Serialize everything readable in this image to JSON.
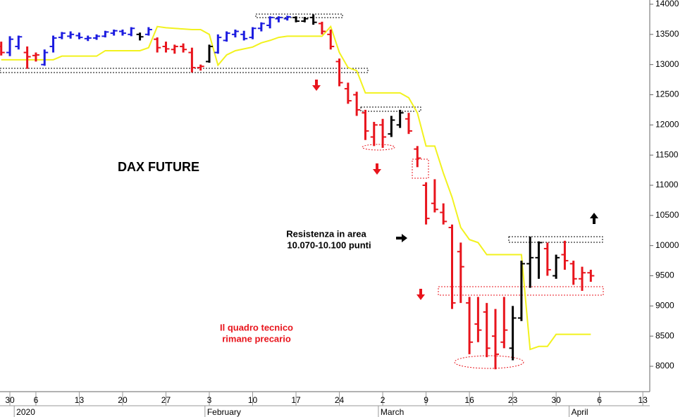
{
  "chart_data": {
    "type": "ohlc",
    "title": "DAX FUTURE",
    "annotations": [
      {
        "lines": [
          "Resistenza in area",
          "10.070-10.100 punti"
        ],
        "color": "#000000"
      },
      {
        "lines": [
          "Il quadro tecnico",
          "rimane precario"
        ],
        "color": "#e8141c"
      }
    ],
    "x": [
      -1,
      0,
      1,
      2,
      3,
      4,
      5,
      6,
      7,
      8,
      9,
      10,
      11,
      12,
      13,
      14,
      15,
      16,
      17,
      18,
      19,
      20,
      21,
      22,
      23,
      24,
      25,
      26,
      27,
      28,
      29,
      30,
      31,
      32,
      33,
      34,
      35,
      36,
      37,
      38,
      39,
      40,
      41,
      42,
      43,
      44,
      45,
      46,
      47,
      48,
      49,
      50,
      51,
      52,
      53,
      54,
      55,
      56,
      57,
      58,
      59,
      60,
      61,
      62,
      63,
      64,
      65,
      66,
      67
    ],
    "open": [
      13300,
      13200,
      13300,
      13200,
      13150,
      13000,
      13300,
      13450,
      13470,
      13480,
      13430,
      13440,
      13470,
      13520,
      13550,
      13500,
      13500,
      13500,
      13420,
      13300,
      13250,
      13300,
      13200,
      12950,
      13050,
      13200,
      13400,
      13500,
      13500,
      13450,
      13600,
      13650,
      13760,
      13760,
      13780,
      13720,
      13780,
      13680,
      13500,
      13050,
      12600,
      12500,
      12200,
      11800,
      12000,
      11850,
      12000,
      12100,
      11600,
      11000,
      10700,
      10550,
      10300,
      9900,
      9050,
      8700,
      8900,
      8500,
      8400,
      8300,
      8800,
      9700,
      9800,
      9950,
      9500,
      9850,
      9700,
      9450,
      9550
    ],
    "high": [
      13380,
      13470,
      13480,
      13300,
      13200,
      13250,
      13480,
      13540,
      13550,
      13530,
      13480,
      13500,
      13560,
      13580,
      13580,
      13620,
      13530,
      13620,
      13450,
      13380,
      13330,
      13350,
      13280,
      13000,
      13330,
      13500,
      13550,
      13580,
      13560,
      13620,
      13700,
      13800,
      13800,
      13810,
      13800,
      13790,
      13830,
      13710,
      13580,
      13100,
      12700,
      12550,
      12250,
      12050,
      12100,
      12150,
      12250,
      12200,
      11650,
      11050,
      11100,
      10700,
      10350,
      10050,
      9150,
      9150,
      9050,
      8950,
      9150,
      9000,
      9750,
      10150,
      10070,
      10050,
      9850,
      10080,
      9750,
      9650,
      9600
    ],
    "low": [
      13150,
      13140,
      13250,
      12930,
      13050,
      12980,
      13200,
      13420,
      13430,
      13420,
      13390,
      13410,
      13450,
      13480,
      13480,
      13470,
      13400,
      13480,
      13200,
      13200,
      13180,
      13200,
      12870,
      12900,
      13030,
      13180,
      13380,
      13450,
      13400,
      13420,
      13550,
      13600,
      13700,
      13730,
      13700,
      13700,
      13660,
      13500,
      13250,
      12640,
      12350,
      12150,
      11750,
      11650,
      11620,
      11800,
      11950,
      11850,
      11300,
      10350,
      10550,
      10350,
      8950,
      9050,
      8200,
      8400,
      8150,
      7950,
      8300,
      8100,
      8750,
      9300,
      9450,
      9500,
      9450,
      9600,
      9350,
      9250,
      9400
    ],
    "close": [
      13200,
      13420,
      13460,
      13130,
      13160,
      13200,
      13440,
      13520,
      13500,
      13450,
      13440,
      13470,
      13540,
      13560,
      13520,
      13600,
      13460,
      13580,
      13280,
      13260,
      13300,
      13250,
      12950,
      12970,
      13300,
      13450,
      13520,
      13550,
      13430,
      13600,
      13680,
      13780,
      13780,
      13790,
      13720,
      13760,
      13700,
      13550,
      13300,
      12700,
      12400,
      12250,
      11900,
      12000,
      11800,
      12080,
      12200,
      11900,
      11450,
      10450,
      10600,
      10400,
      9050,
      9650,
      8400,
      8600,
      8300,
      8200,
      8600,
      8800,
      9700,
      9800,
      10050,
      9600,
      9800,
      9750,
      9450,
      9550,
      9500
    ],
    "colors": [
      "#e8141c",
      "#1c1ce0",
      "#1c1ce0",
      "#e8141c",
      "#e8141c",
      "#1c1ce0",
      "#1c1ce0",
      "#1c1ce0",
      "#1c1ce0",
      "#1c1ce0",
      "#1c1ce0",
      "#1c1ce0",
      "#1c1ce0",
      "#1c1ce0",
      "#1c1ce0",
      "#1c1ce0",
      "#000000",
      "#1c1ce0",
      "#e8141c",
      "#e8141c",
      "#e8141c",
      "#e8141c",
      "#e8141c",
      "#e8141c",
      "#000000",
      "#1c1ce0",
      "#1c1ce0",
      "#1c1ce0",
      "#1c1ce0",
      "#1c1ce0",
      "#1c1ce0",
      "#1c1ce0",
      "#1c1ce0",
      "#1c1ce0",
      "#000000",
      "#000000",
      "#000000",
      "#e8141c",
      "#e8141c",
      "#e8141c",
      "#e8141c",
      "#e8141c",
      "#e8141c",
      "#e8141c",
      "#e8141c",
      "#000000",
      "#000000",
      "#e8141c",
      "#e8141c",
      "#e8141c",
      "#e8141c",
      "#e8141c",
      "#e8141c",
      "#e8141c",
      "#e8141c",
      "#e8141c",
      "#e8141c",
      "#e8141c",
      "#e8141c",
      "#000000",
      "#000000",
      "#000000",
      "#000000",
      "#e8141c",
      "#000000",
      "#e8141c",
      "#e8141c",
      "#e8141c",
      "#e8141c"
    ],
    "line": {
      "color": "#f2f21e",
      "values": [
        13080,
        13080,
        13080,
        13080,
        13080,
        13080,
        13080,
        13140,
        13140,
        13140,
        13140,
        13140,
        13230,
        13230,
        13230,
        13230,
        13230,
        13280,
        13630,
        13610,
        13600,
        13590,
        13580,
        13580,
        13500,
        12990,
        13160,
        13230,
        13260,
        13290,
        13360,
        13400,
        13450,
        13470,
        13470,
        13470,
        13470,
        13470,
        13630,
        13200,
        12950,
        12900,
        12530,
        12530,
        12530,
        12530,
        12530,
        12450,
        12200,
        11650,
        11650,
        11200,
        10800,
        10300,
        10100,
        10050,
        9850,
        9850,
        9850,
        9850,
        9850,
        8280,
        8330,
        8330,
        8530,
        8530,
        8530,
        8530,
        8530
      ]
    },
    "xlim": [
      -1.14,
      73.8
    ],
    "ylim": [
      7580,
      14070
    ],
    "xticks": [
      {
        "value": 0,
        "label": "30"
      },
      {
        "value": 3,
        "label": "6"
      },
      {
        "value": 8,
        "label": "13"
      },
      {
        "value": 13,
        "label": "20"
      },
      {
        "value": 18,
        "label": "27"
      },
      {
        "value": 23,
        "label": "3"
      },
      {
        "value": 28,
        "label": "10"
      },
      {
        "value": 33,
        "label": "17"
      },
      {
        "value": 38,
        "label": "24"
      },
      {
        "value": 43,
        "label": "2"
      },
      {
        "value": 48,
        "label": "9"
      },
      {
        "value": 53,
        "label": "16"
      },
      {
        "value": 58,
        "label": "23"
      },
      {
        "value": 63,
        "label": "30"
      },
      {
        "value": 68,
        "label": "6"
      },
      {
        "value": 73,
        "label": "13"
      }
    ],
    "month_ticks": [
      {
        "value": 0.5,
        "label": "2020"
      },
      {
        "value": 22.5,
        "label": "February"
      },
      {
        "value": 42.5,
        "label": "March"
      },
      {
        "value": 64.5,
        "label": "April"
      }
    ],
    "yticks": [
      8000,
      8500,
      9000,
      9500,
      10000,
      10500,
      11000,
      11500,
      12000,
      12500,
      13000,
      13500,
      14000
    ]
  }
}
